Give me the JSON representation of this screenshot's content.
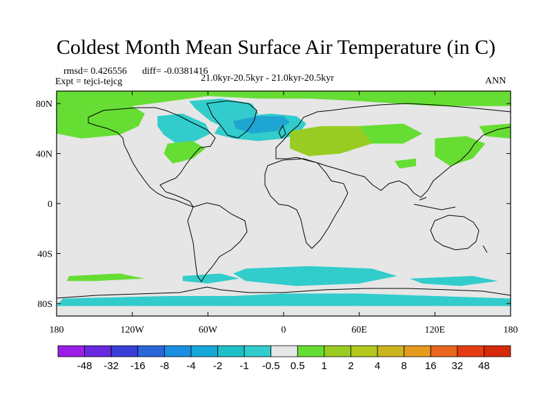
{
  "title": "Coldest Month Mean Surface Air Temperature (in C)",
  "stats": {
    "rmsd_label": "rmsd= 0.426556",
    "diff_label": "diff= -0.0381416"
  },
  "experiment": "Expt = tejci-tejcg",
  "period": "21.0kyr-20.5kyr - 21.0kyr-20.5kyr",
  "season": "ANN",
  "map": {
    "projection": "cylindrical-equidistant",
    "lat_ticks": [
      {
        "value": 80,
        "label": "80N"
      },
      {
        "value": 40,
        "label": "40N"
      },
      {
        "value": 0,
        "label": "0"
      },
      {
        "value": -40,
        "label": "40S"
      },
      {
        "value": -80,
        "label": "80S"
      }
    ],
    "lon_ticks": [
      {
        "value": -180,
        "label": "180"
      },
      {
        "value": -120,
        "label": "120W"
      },
      {
        "value": -60,
        "label": "60W"
      },
      {
        "value": 0,
        "label": "0"
      },
      {
        "value": 60,
        "label": "60E"
      },
      {
        "value": 120,
        "label": "120E"
      },
      {
        "value": 180,
        "label": "180"
      }
    ],
    "background_color": "#e6e6e6",
    "regions": [
      {
        "name": "arctic-positive",
        "color": "#66dd33",
        "points": [
          [
            -180,
            90
          ],
          [
            180,
            90
          ],
          [
            180,
            78
          ],
          [
            120,
            78
          ],
          [
            90,
            80
          ],
          [
            60,
            82
          ],
          [
            20,
            84
          ],
          [
            -20,
            84
          ],
          [
            -60,
            86
          ],
          [
            -120,
            78
          ],
          [
            -180,
            80
          ]
        ]
      },
      {
        "name": "north-america-high-positive",
        "color": "#66dd33",
        "points": [
          [
            -180,
            80
          ],
          [
            -120,
            78
          ],
          [
            -110,
            72
          ],
          [
            -115,
            62
          ],
          [
            -130,
            55
          ],
          [
            -160,
            52
          ],
          [
            -180,
            56
          ]
        ]
      },
      {
        "name": "greenland-negative",
        "color": "#33cccc",
        "points": [
          [
            -75,
            82
          ],
          [
            -50,
            84
          ],
          [
            -25,
            80
          ],
          [
            -20,
            72
          ],
          [
            -35,
            64
          ],
          [
            -45,
            60
          ],
          [
            -58,
            66
          ],
          [
            -70,
            76
          ]
        ]
      },
      {
        "name": "canada-negative",
        "color": "#33cccc",
        "points": [
          [
            -100,
            70
          ],
          [
            -80,
            72
          ],
          [
            -62,
            64
          ],
          [
            -58,
            56
          ],
          [
            -70,
            50
          ],
          [
            -85,
            48
          ],
          [
            -95,
            55
          ],
          [
            -100,
            62
          ]
        ]
      },
      {
        "name": "north-atlantic-negative",
        "color": "#33cccc",
        "points": [
          [
            -50,
            64
          ],
          [
            -30,
            70
          ],
          [
            -10,
            72
          ],
          [
            10,
            70
          ],
          [
            18,
            64
          ],
          [
            12,
            56
          ],
          [
            0,
            52
          ],
          [
            -20,
            50
          ],
          [
            -40,
            52
          ],
          [
            -55,
            56
          ]
        ]
      },
      {
        "name": "norwegian-sea-stronger-negative",
        "color": "#1ea5d2",
        "points": [
          [
            -40,
            66
          ],
          [
            -20,
            70
          ],
          [
            0,
            70
          ],
          [
            5,
            65
          ],
          [
            -5,
            58
          ],
          [
            -25,
            56
          ],
          [
            -38,
            60
          ]
        ]
      },
      {
        "name": "eastern-us-positive",
        "color": "#66dd33",
        "points": [
          [
            -92,
            48
          ],
          [
            -72,
            50
          ],
          [
            -62,
            44
          ],
          [
            -72,
            36
          ],
          [
            -88,
            32
          ],
          [
            -95,
            40
          ]
        ]
      },
      {
        "name": "europe-positive",
        "color": "#99cc22",
        "points": [
          [
            5,
            58
          ],
          [
            30,
            62
          ],
          [
            60,
            62
          ],
          [
            80,
            58
          ],
          [
            70,
            48
          ],
          [
            45,
            40
          ],
          [
            20,
            38
          ],
          [
            5,
            44
          ]
        ]
      },
      {
        "name": "west-asia-positive",
        "color": "#66dd33",
        "points": [
          [
            60,
            62
          ],
          [
            95,
            64
          ],
          [
            110,
            56
          ],
          [
            95,
            48
          ],
          [
            70,
            48
          ]
        ]
      },
      {
        "name": "east-asia-positive",
        "color": "#66dd33",
        "points": [
          [
            120,
            52
          ],
          [
            145,
            54
          ],
          [
            160,
            48
          ],
          [
            150,
            36
          ],
          [
            132,
            30
          ],
          [
            120,
            38
          ]
        ]
      },
      {
        "name": "central-asia-positive",
        "color": "#66dd33",
        "points": [
          [
            88,
            34
          ],
          [
            105,
            36
          ],
          [
            105,
            30
          ],
          [
            92,
            28
          ]
        ]
      },
      {
        "name": "kamchatka-positive",
        "color": "#66dd33",
        "points": [
          [
            155,
            62
          ],
          [
            180,
            64
          ],
          [
            180,
            52
          ],
          [
            160,
            54
          ]
        ]
      },
      {
        "name": "southern-ocean-negative-a",
        "color": "#33cccc",
        "points": [
          [
            -30,
            -52
          ],
          [
            20,
            -50
          ],
          [
            70,
            -52
          ],
          [
            90,
            -58
          ],
          [
            60,
            -64
          ],
          [
            10,
            -66
          ],
          [
            -30,
            -62
          ],
          [
            -40,
            -56
          ]
        ]
      },
      {
        "name": "southern-ocean-negative-b",
        "color": "#33cccc",
        "points": [
          [
            -80,
            -58
          ],
          [
            -50,
            -56
          ],
          [
            -35,
            -60
          ],
          [
            -60,
            -64
          ],
          [
            -80,
            -62
          ]
        ]
      },
      {
        "name": "southern-ocean-negative-c",
        "color": "#33cccc",
        "points": [
          [
            100,
            -60
          ],
          [
            150,
            -58
          ],
          [
            170,
            -62
          ],
          [
            140,
            -66
          ],
          [
            110,
            -64
          ]
        ]
      },
      {
        "name": "southern-ocean-negative-d",
        "color": "#33cccc",
        "points": [
          [
            -175,
            -76
          ],
          [
            -90,
            -74
          ],
          [
            -40,
            -74
          ],
          [
            0,
            -72
          ],
          [
            60,
            -72
          ],
          [
            120,
            -74
          ],
          [
            180,
            -76
          ],
          [
            180,
            -82
          ],
          [
            -180,
            -82
          ]
        ]
      },
      {
        "name": "southern-ocean-positive",
        "color": "#66dd33",
        "points": [
          [
            -170,
            -58
          ],
          [
            -130,
            -56
          ],
          [
            -110,
            -60
          ],
          [
            -150,
            -62
          ],
          [
            -172,
            -62
          ]
        ]
      }
    ]
  },
  "colorbar": {
    "levels": [
      "-48",
      "-32",
      "-16",
      "-8",
      "-4",
      "-2",
      "-1",
      "-0.5",
      "0.5",
      "1",
      "2",
      "4",
      "8",
      "16",
      "32",
      "48"
    ],
    "colors": [
      "#9a1ee6",
      "#6a28e0",
      "#3a3ed8",
      "#2a66d8",
      "#1a8ee0",
      "#17a6d8",
      "#1fbfc8",
      "#33cccc",
      "#e6e6e6",
      "#66dd33",
      "#99cc22",
      "#b4c81e",
      "#ccb41e",
      "#e69a1e",
      "#e8661e",
      "#e63c14",
      "#d42a0a"
    ]
  }
}
